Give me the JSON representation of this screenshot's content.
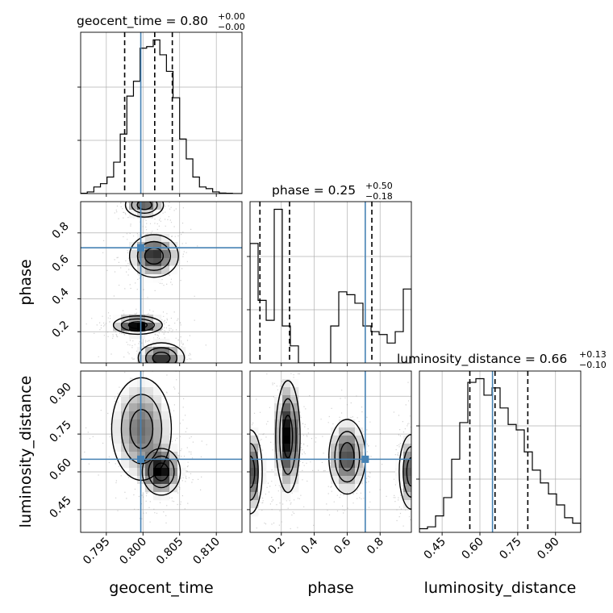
{
  "chart_data": {
    "type": "corner",
    "parameters": [
      "geocent_time",
      "phase",
      "luminosity_distance"
    ],
    "truth": {
      "geocent_time": 0.7997,
      "phase": 0.71,
      "luminosity_distance": 0.65
    },
    "truth_color": "#4682b4",
    "grid": true,
    "titles": {
      "geocent_time": {
        "prefix": "geocent_time = 0.80",
        "upper": "+0.00",
        "lower": "−0.00"
      },
      "phase": {
        "prefix": "phase = 0.25",
        "upper": "+0.50",
        "lower": "−0.18"
      },
      "luminosity_distance": {
        "prefix": "luminosity_distance = 0.66",
        "upper": "+0.13",
        "lower": "−0.10"
      }
    },
    "axes": {
      "geocent_time": {
        "range": [
          0.7915,
          0.8135
        ],
        "ticks": [
          0.795,
          0.8,
          0.805,
          0.81
        ],
        "tick_labels": [
          "0.795",
          "0.800",
          "0.805",
          "0.810"
        ]
      },
      "phase": {
        "range": [
          0.01,
          0.99
        ],
        "ticks": [
          0.2,
          0.4,
          0.6,
          0.8
        ],
        "tick_labels": [
          "0.2",
          "0.4",
          "0.6",
          "0.8"
        ]
      },
      "luminosity_distance": {
        "range": [
          0.36,
          1.0
        ],
        "ticks": [
          0.45,
          0.6,
          0.75,
          0.9
        ],
        "tick_labels": [
          "0.45",
          "0.60",
          "0.75",
          "0.90"
        ]
      }
    },
    "histograms": {
      "geocent_time": {
        "edges": [
          0.7915,
          0.7924,
          0.7933,
          0.7942,
          0.7951,
          0.796,
          0.7969,
          0.7978,
          0.7987,
          0.7996,
          0.8005,
          0.8014,
          0.8023,
          0.8032,
          0.8041,
          0.805,
          0.8059,
          0.8068,
          0.8077,
          0.8086,
          0.8095,
          0.8104,
          0.8113,
          0.8122,
          0.8135
        ],
        "counts": [
          0.2,
          1,
          4,
          6,
          10,
          19,
          36,
          59,
          68,
          88,
          89,
          93,
          84,
          74,
          58,
          33,
          21,
          10,
          4,
          3,
          1,
          0.3,
          0.2,
          0
        ],
        "quantiles": [
          0.7975,
          0.8016,
          0.804
        ]
      },
      "phase": {
        "edges": [
          0.01,
          0.059,
          0.108,
          0.157,
          0.206,
          0.255,
          0.304,
          0.353,
          0.402,
          0.451,
          0.5,
          0.549,
          0.598,
          0.647,
          0.696,
          0.745,
          0.794,
          0.843,
          0.892,
          0.941,
          0.99
        ],
        "counts": [
          42,
          22,
          15,
          54,
          13,
          6,
          0,
          0,
          0,
          0,
          13,
          25,
          24,
          21,
          13,
          11,
          10,
          7,
          11,
          26
        ],
        "quantiles": [
          0.07,
          0.25,
          0.75
        ]
      },
      "luminosity_distance": {
        "edges": [
          0.36,
          0.392,
          0.424,
          0.456,
          0.488,
          0.52,
          0.552,
          0.584,
          0.616,
          0.648,
          0.68,
          0.712,
          0.744,
          0.776,
          0.808,
          0.84,
          0.872,
          0.904,
          0.936,
          0.968,
          1.0
        ],
        "counts": [
          2,
          3,
          9,
          19,
          40,
          60,
          82,
          84,
          75,
          79,
          68,
          59,
          56,
          44,
          34,
          27,
          21,
          15,
          8,
          5
        ],
        "quantiles": [
          0.56,
          0.66,
          0.79
        ]
      }
    },
    "joint_modes": [
      {
        "x": "geocent_time",
        "y": "phase",
        "modes": [
          [
            0.8002,
            0.97,
            0.0014,
            0.04,
            0.8
          ],
          [
            0.8015,
            0.66,
            0.0018,
            0.07,
            1.0
          ],
          [
            0.7993,
            0.24,
            0.0018,
            0.03,
            1.25
          ],
          [
            0.8025,
            0.04,
            0.0017,
            0.05,
            1.0
          ]
        ]
      },
      {
        "x": "geocent_time",
        "y": "luminosity_distance",
        "modes": [
          [
            0.7998,
            0.77,
            0.0022,
            0.11,
            0.9
          ],
          [
            0.8025,
            0.6,
            0.0014,
            0.05,
            1.35
          ]
        ]
      },
      {
        "x": "phase",
        "y": "luminosity_distance",
        "modes": [
          [
            0.24,
            0.74,
            0.04,
            0.12,
            1.2
          ],
          [
            0.01,
            0.6,
            0.04,
            0.09,
            1.0
          ],
          [
            0.6,
            0.66,
            0.06,
            0.08,
            0.9
          ],
          [
            0.99,
            0.6,
            0.04,
            0.08,
            0.9
          ]
        ]
      }
    ]
  }
}
